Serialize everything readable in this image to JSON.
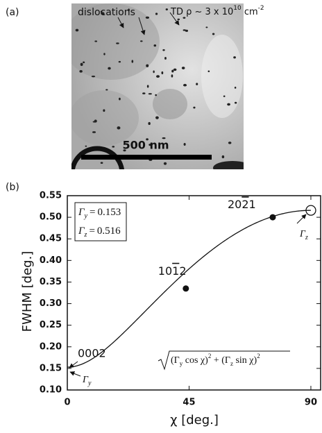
{
  "panel_a": {
    "label": "(a)",
    "dislocations_label": "dislocations",
    "density_label": [
      "TD ρ ~ 3 x 10",
      "10",
      " cm",
      "-2"
    ],
    "scale_bar": "500 nm"
  },
  "chart_data": {
    "type": "scatter",
    "panel_label": "(b)",
    "xlabel": "χ [deg.]",
    "ylabel": "FWHM [deg.]",
    "xlim": [
      0,
      93.6
    ],
    "xticks": [
      0,
      45,
      90
    ],
    "ylim": [
      0.1,
      0.55
    ],
    "yticks": [
      {
        "value": 0.1,
        "label": "0.10"
      },
      0.15,
      {
        "value": 0.2,
        "label": "0.20"
      },
      0.25,
      {
        "value": 0.3,
        "label": "0.30"
      },
      0.35,
      {
        "value": 0.4,
        "label": "0.40"
      },
      0.45,
      {
        "value": 0.5,
        "label": "0.50"
      },
      0.55
    ],
    "x": [
      43.8,
      75.9
    ],
    "values": [
      0.335,
      0.5
    ],
    "color": "#111111",
    "point_labels": [
      [
        "10",
        "1",
        "2"
      ],
      [
        "20",
        "2",
        "1"
      ]
    ],
    "origin_label": "0002",
    "fit": [
      {
        "symbol": "Γ",
        "sub": "y",
        "op": "=",
        "value": 0.153
      },
      {
        "symbol": "Γ",
        "sub": "z",
        "op": "=",
        "value": 0.516
      }
    ],
    "formula": [
      "(Γ",
      "y",
      " cos χ)",
      "2",
      " + (Γ",
      "z",
      " sin χ)",
      "2"
    ]
  }
}
